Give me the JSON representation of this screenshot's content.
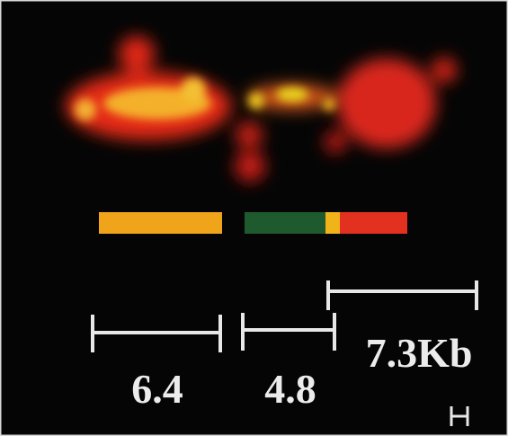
{
  "scale_labels": [
    "6.4",
    "4.8",
    "7.3Kb"
  ]
}
